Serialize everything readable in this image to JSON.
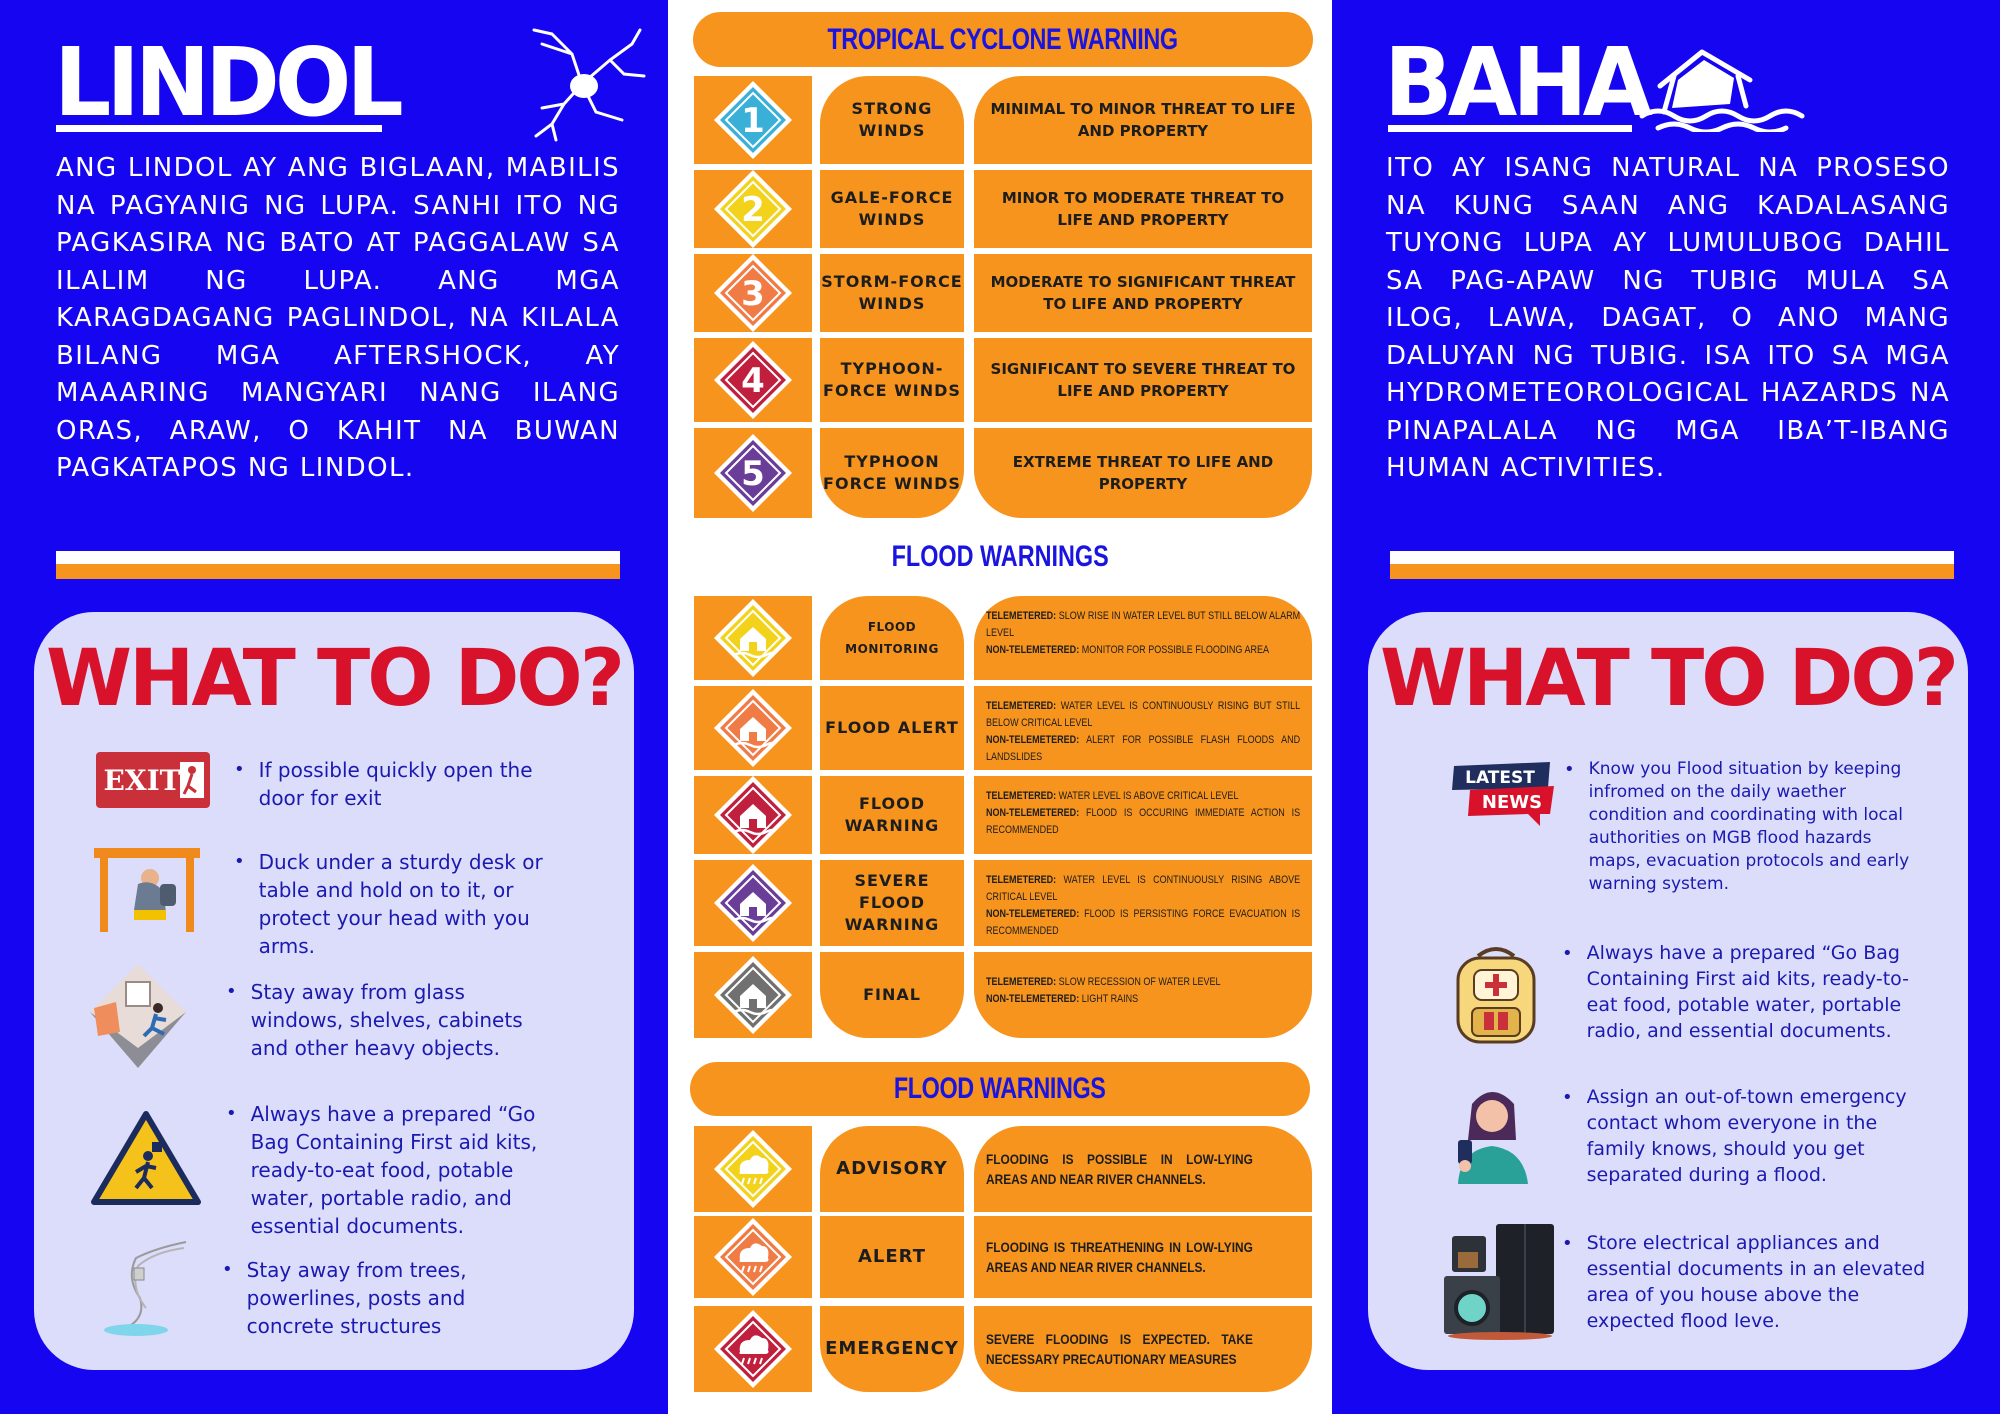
{
  "lindol": {
    "title": "LINDOL",
    "description": "Ang lindol ay ang biglaan, mabilis na pagyanig ng lupa. Sanhi ito ng pagkasira ng bato at paggalaw sa ilalim ng lupa. Ang mga karagdagang paglindol, na kilala bilang mga aftershock, ay maaaring mangyari nang ilang oras, araw, o kahit na buwan pagkatapos ng lindol.",
    "what_to_do_title": "WHAT TO DO?",
    "exit_sign": "EXIT",
    "tips": [
      "If possible quickly open the door for exit",
      "Duck under a sturdy desk or table and hold on to it, or protect your head with you arms.",
      "Stay away from glass windows, shelves, cabinets and other heavy objects.",
      "Always have a prepared “Go Bag Containing First aid kits, ready-to-eat food, potable water, portable radio, and essential documents.",
      "Stay away from trees, powerlines, posts and concrete structures"
    ]
  },
  "baha": {
    "title": "BAHA",
    "description": "Ito ay isang natural na proseso na kung saan ang kadalasang tuyong lupa ay lumulubog dahil sa pag-apaw ng tubig mula sa ilog, lawa, dagat, o ano mang daluyan ng tubig. Isa ito sa mga hydrometeorological  hazards na pinapalala ng mga iba’t-ibang human activities.",
    "what_to_do_title": "WHAT TO DO?",
    "news_badge": {
      "top": "LATEST",
      "bottom": "NEWS"
    },
    "tips": [
      "Know you Flood situation by keeping infromed on the daily waether condition and coordinating with local authorities on MGB flood hazards maps, evacuation protocols and early warning system.",
      "Always have a prepared “Go Bag Containing First aid kits, ready-to-eat food, potable water, portable radio, and essential documents.",
      "Assign an out-of-town emergency contact whom everyone in the family knows, should you get separated during a flood.",
      "Store electrical appliances and essential documents in an elevated area of you house above the expected flood leve."
    ]
  },
  "tcw": {
    "title": "TROPICAL CYCLONE WARNING",
    "rows": [
      {
        "num": "1",
        "color": "#3ab0d8",
        "name": "STRONG WINDS",
        "desc": "MINIMAL TO MINOR THREAT TO LIFE AND PROPERTY"
      },
      {
        "num": "2",
        "color": "#f3d21b",
        "name": "GALE-FORCE WINDS",
        "desc": "MINOR TO MODERATE THREAT TO LIFE AND PROPERTY"
      },
      {
        "num": "3",
        "color": "#f07b45",
        "name": "STORM-FORCE WINDS",
        "desc": "MODERATE TO SIGNIFICANT THREAT TO LIFE AND PROPERTY"
      },
      {
        "num": "4",
        "color": "#c0203e",
        "name": "TYPHOON-FORCE WINDS",
        "desc": "SIGNIFICANT TO SEVERE THREAT TO LIFE AND PROPERTY"
      },
      {
        "num": "5",
        "color": "#6a3d98",
        "name": "TYPHOON FORCE WINDS",
        "desc": "EXTREME THREAT TO LIFE AND PROPERTY"
      }
    ]
  },
  "flood_warnings": {
    "title": "FLOOD WARNINGS",
    "tele_label": "TELEMETERED:",
    "nontele_label": "NON-TELEMETERED:",
    "rows": [
      {
        "color": "#f3d21b",
        "name": "FLOOD MONITORING",
        "tele": "SLOW RISE IN WATER LEVEL BUT STILL BELOW ALARM LEVEL",
        "nontele": "MONITOR FOR POSSIBLE FLOODING AREA"
      },
      {
        "color": "#f07b45",
        "name": "FLOOD ALERT",
        "tele": "WATER LEVEL IS CONTINUOUSLY RISING BUT STILL BELOW CRITICAL LEVEL",
        "nontele": "ALERT FOR POSSIBLE FLASH FLOODS AND LANDSLIDES"
      },
      {
        "color": "#c0203e",
        "name": "FLOOD WARNING",
        "tele": "WATER LEVEL IS ABOVE CRITICAL LEVEL",
        "nontele": "FLOOD IS OCCURING IMMEDIATE ACTION IS RECOMMENDED"
      },
      {
        "color": "#6a3d98",
        "name": "SEVERE FLOOD WARNING",
        "tele": "WATER LEVEL IS CONTINUOUSLY RISING ABOVE CRITICAL LEVEL",
        "nontele": "FLOOD IS PERSISTING FORCE EVACUATION IS RECOMMENDED"
      },
      {
        "color": "#707070",
        "name": "FINAL",
        "tele": "SLOW RECESSION OF WATER LEVEL",
        "nontele": "LIGHT RAINS"
      }
    ]
  },
  "flood_advisories": {
    "title": "FLOOD WARNINGS",
    "rows": [
      {
        "color": "#f3d21b",
        "name": "ADVISORY",
        "desc": "FLOODING IS POSSIBLE IN LOW-LYING AREAS AND NEAR RIVER CHANNELS."
      },
      {
        "color": "#f07b45",
        "name": "ALERT",
        "desc": "FLOODING IS THREATHENING IN LOW-LYING AREAS AND NEAR RIVER CHANNELS."
      },
      {
        "color": "#c0203e",
        "name": "EMERGENCY",
        "desc": "SEVERE FLOODING IS EXPECTED. TAKE NECESSARY PRECAUTIONARY MEASURES"
      }
    ]
  }
}
